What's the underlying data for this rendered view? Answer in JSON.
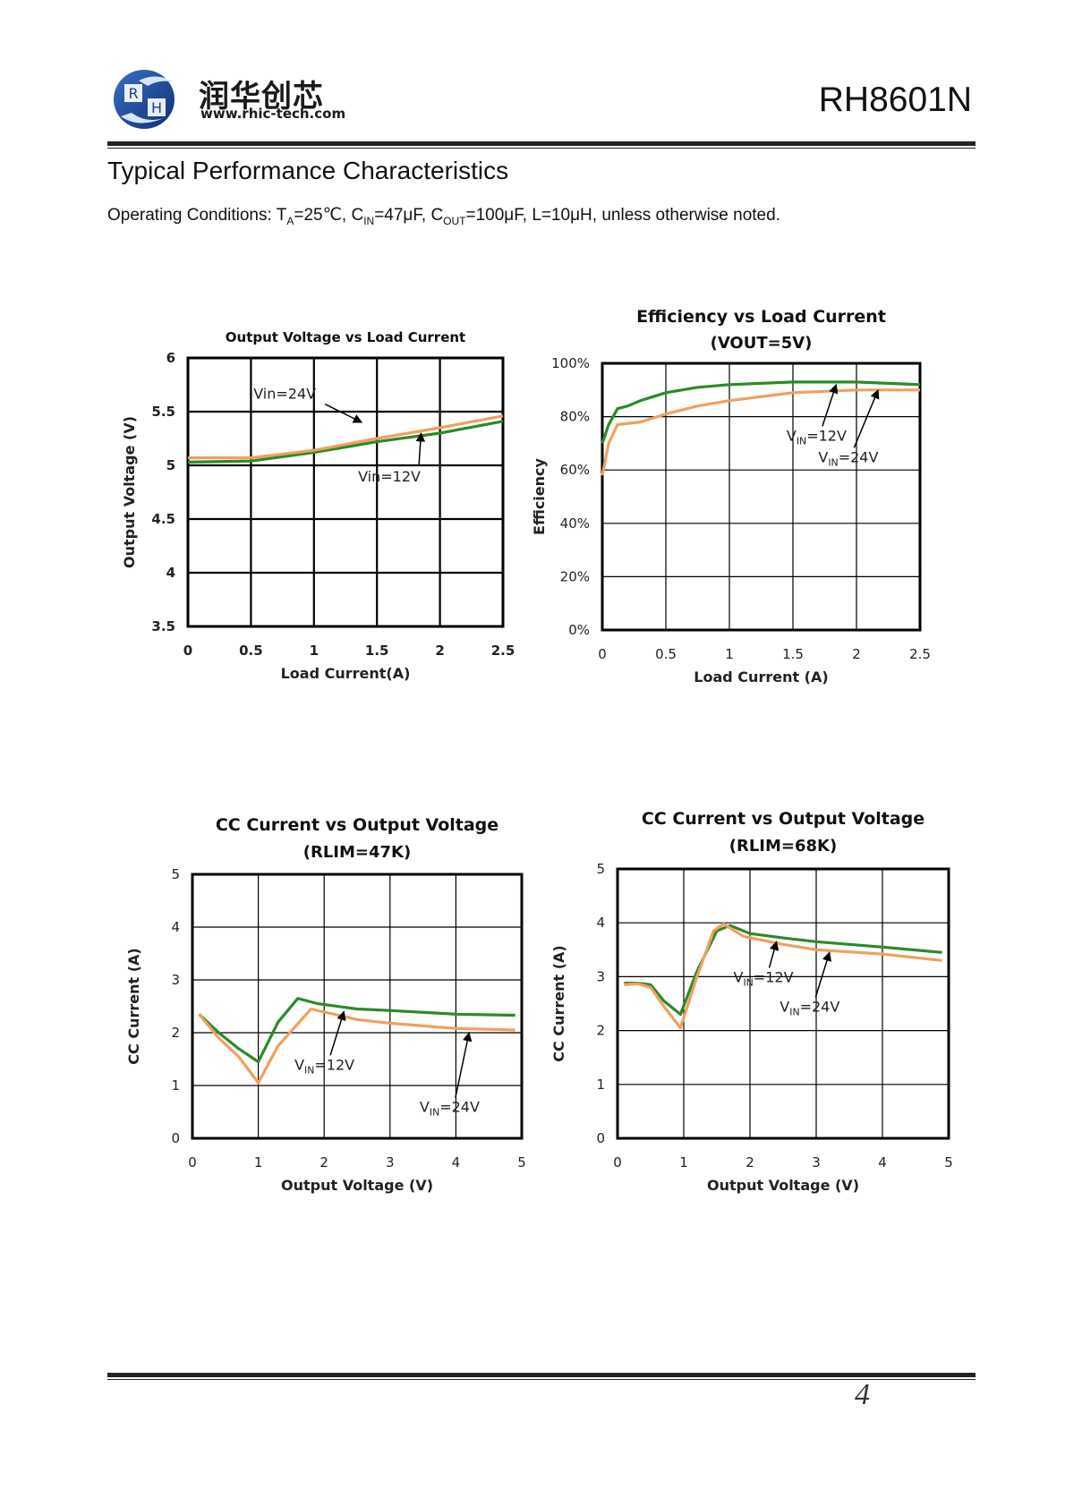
{
  "header": {
    "brand_cn": "润华创芯",
    "brand_url": "www.rhic-tech.com",
    "logo_letters": [
      "R",
      "H"
    ],
    "part_number": "RH8601N"
  },
  "section": {
    "title": "Typical Performance Characteristics",
    "conditions": {
      "prefix": "Operating Conditions: T",
      "ta_sub": "A",
      "ta_val": "=25℃, C",
      "cin_sub": "IN",
      "cin_val": "=47μF, C",
      "cout_sub": "OUT",
      "cout_val": "=100μF, L=10μH, unless otherwise noted."
    }
  },
  "colors": {
    "green": "#2a8a2a",
    "orange": "#f0a060",
    "grid": "#000000"
  },
  "chart_data": [
    {
      "type": "line",
      "title": "Output Voltage vs Load Current",
      "subtitle": "",
      "xlabel": "Load Current(A)",
      "ylabel": "Output Voltage (V)",
      "xlim": [
        0,
        2.5
      ],
      "ylim": [
        3.5,
        6
      ],
      "xticks": [
        "0",
        "0.5",
        "1",
        "1.5",
        "2",
        "2.5"
      ],
      "yticks": [
        "6",
        "5.5",
        "5",
        "4.5",
        "4",
        "3.5"
      ],
      "grid": true,
      "series": [
        {
          "name": "Vin=12V",
          "color": "green",
          "points": [
            [
              0,
              5.03
            ],
            [
              0.5,
              5.04
            ],
            [
              1,
              5.12
            ],
            [
              1.5,
              5.22
            ],
            [
              2,
              5.3
            ],
            [
              2.5,
              5.41
            ]
          ]
        },
        {
          "name": "Vin=24V",
          "color": "orange",
          "points": [
            [
              0,
              5.07
            ],
            [
              0.5,
              5.07
            ],
            [
              1,
              5.14
            ],
            [
              1.5,
              5.25
            ],
            [
              2,
              5.35
            ],
            [
              2.5,
              5.46
            ]
          ]
        }
      ],
      "annotations": [
        {
          "text": "Vin=24V",
          "x": 0.52,
          "y": 5.62,
          "ax": 1.38,
          "ay": 5.4
        },
        {
          "text": "Vin=12V",
          "x": 1.35,
          "y": 4.85,
          "ax": 1.85,
          "ay": 5.3
        }
      ]
    },
    {
      "type": "line",
      "title": "Efficiency vs Load Current",
      "subtitle": "(VOUT=5V)",
      "xlabel": "Load Current (A)",
      "ylabel": "Efficiency",
      "xlim": [
        0,
        2.5
      ],
      "ylim": [
        0,
        100
      ],
      "xticks": [
        "0",
        "0.5",
        "1",
        "1.5",
        "2",
        "2.5"
      ],
      "yticks": [
        "100%",
        "80%",
        "60%",
        "40%",
        "20%",
        "0%"
      ],
      "grid": true,
      "series": [
        {
          "name": "VIN=12V",
          "color": "green",
          "points": [
            [
              0,
              70
            ],
            [
              0.05,
              77
            ],
            [
              0.12,
              83
            ],
            [
              0.2,
              84
            ],
            [
              0.3,
              86
            ],
            [
              0.5,
              89
            ],
            [
              0.75,
              91
            ],
            [
              1,
              92
            ],
            [
              1.5,
              93
            ],
            [
              2,
              93
            ],
            [
              2.5,
              92
            ]
          ]
        },
        {
          "name": "VIN=24V",
          "color": "orange",
          "points": [
            [
              0,
              58
            ],
            [
              0.05,
              70
            ],
            [
              0.12,
              77
            ],
            [
              0.3,
              78
            ],
            [
              0.5,
              81
            ],
            [
              0.75,
              84
            ],
            [
              1,
              86
            ],
            [
              1.5,
              89
            ],
            [
              2,
              90
            ],
            [
              2.5,
              90
            ]
          ]
        }
      ],
      "annotations": [
        {
          "text": "VIN=12V",
          "sub": "IN",
          "x": 1.45,
          "y": 71,
          "ax": 1.84,
          "ay": 92
        },
        {
          "text": "VIN=24V",
          "sub": "IN",
          "x": 1.7,
          "y": 63,
          "ax": 2.17,
          "ay": 90
        }
      ]
    },
    {
      "type": "line",
      "title": "CC Current vs Output Voltage",
      "subtitle": "(RLIM=47K)",
      "xlabel": "Output Voltage (V)",
      "ylabel": "CC Current (A)",
      "xlim": [
        0,
        5
      ],
      "ylim": [
        0,
        5
      ],
      "xticks": [
        "0",
        "1",
        "2",
        "3",
        "4",
        "5"
      ],
      "yticks": [
        "5",
        "4",
        "3",
        "2",
        "1",
        "0"
      ],
      "grid": true,
      "series": [
        {
          "name": "VIN=12V",
          "color": "green",
          "points": [
            [
              0.1,
              2.35
            ],
            [
              0.4,
              2.0
            ],
            [
              0.7,
              1.7
            ],
            [
              1.0,
              1.45
            ],
            [
              1.3,
              2.2
            ],
            [
              1.6,
              2.65
            ],
            [
              1.9,
              2.55
            ],
            [
              2.5,
              2.45
            ],
            [
              3.0,
              2.42
            ],
            [
              4.0,
              2.35
            ],
            [
              4.9,
              2.33
            ]
          ]
        },
        {
          "name": "VIN=24V",
          "color": "orange",
          "points": [
            [
              0.1,
              2.35
            ],
            [
              0.4,
              1.9
            ],
            [
              0.7,
              1.55
            ],
            [
              1.0,
              1.05
            ],
            [
              1.3,
              1.75
            ],
            [
              1.8,
              2.45
            ],
            [
              2.5,
              2.25
            ],
            [
              3.0,
              2.18
            ],
            [
              4.0,
              2.08
            ],
            [
              4.9,
              2.05
            ]
          ]
        }
      ],
      "annotations": [
        {
          "text": "VIN=12V",
          "sub": "IN",
          "x": 1.55,
          "y": 1.3,
          "ax": 2.3,
          "ay": 2.4
        },
        {
          "text": "VIN=24V",
          "sub": "IN",
          "x": 3.45,
          "y": 0.5,
          "ax": 4.2,
          "ay": 2.0
        }
      ]
    },
    {
      "type": "line",
      "title": "CC Current vs Output Voltage",
      "subtitle": "(RLIM=68K)",
      "xlabel": "Output Voltage (V)",
      "ylabel": "CC Current (A)",
      "xlim": [
        0,
        5
      ],
      "ylim": [
        0,
        5
      ],
      "xticks": [
        "0",
        "1",
        "2",
        "3",
        "4",
        "5"
      ],
      "yticks": [
        "5",
        "4",
        "3",
        "2",
        "1",
        "0"
      ],
      "grid": true,
      "series": [
        {
          "name": "VIN=12V",
          "color": "green",
          "points": [
            [
              0.1,
              2.88
            ],
            [
              0.3,
              2.88
            ],
            [
              0.5,
              2.85
            ],
            [
              0.7,
              2.55
            ],
            [
              0.95,
              2.3
            ],
            [
              1.2,
              3.1
            ],
            [
              1.5,
              3.85
            ],
            [
              1.7,
              3.95
            ],
            [
              2.0,
              3.8
            ],
            [
              2.5,
              3.72
            ],
            [
              3.0,
              3.65
            ],
            [
              4.0,
              3.55
            ],
            [
              4.9,
              3.45
            ]
          ]
        },
        {
          "name": "VIN=24V",
          "color": "orange",
          "points": [
            [
              0.1,
              2.85
            ],
            [
              0.3,
              2.87
            ],
            [
              0.5,
              2.8
            ],
            [
              0.7,
              2.45
            ],
            [
              0.95,
              2.05
            ],
            [
              1.2,
              3.0
            ],
            [
              1.45,
              3.85
            ],
            [
              1.6,
              3.98
            ],
            [
              1.9,
              3.75
            ],
            [
              2.5,
              3.6
            ],
            [
              3.0,
              3.5
            ],
            [
              4.0,
              3.42
            ],
            [
              4.9,
              3.3
            ]
          ]
        }
      ],
      "annotations": [
        {
          "text": "VIN=12V",
          "sub": "IN",
          "x": 1.75,
          "y": 2.9,
          "ax": 2.4,
          "ay": 3.65
        },
        {
          "text": "VIN=24V",
          "sub": "IN",
          "x": 2.45,
          "y": 2.35,
          "ax": 3.2,
          "ay": 3.45
        }
      ]
    }
  ],
  "footer": {
    "page_number": "4"
  }
}
